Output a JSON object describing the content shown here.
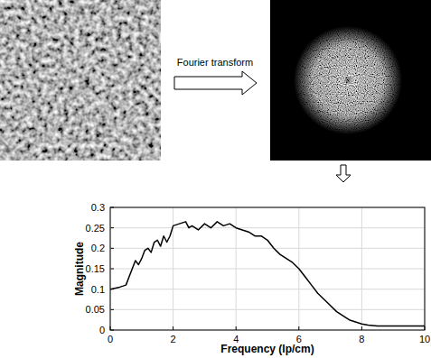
{
  "chart_data": {
    "type": "line",
    "annotation": "Fourier transform",
    "x_label": "Frequency (lp/cm)",
    "y_label": "Magnitude",
    "x": [
      0,
      0.3,
      0.5,
      0.6,
      0.8,
      0.9,
      1.0,
      1.1,
      1.2,
      1.3,
      1.4,
      1.5,
      1.6,
      1.7,
      1.8,
      1.9,
      2.0,
      2.2,
      2.4,
      2.5,
      2.6,
      2.8,
      3.0,
      3.2,
      3.4,
      3.6,
      3.8,
      4.0,
      4.2,
      4.4,
      4.6,
      4.8,
      5.0,
      5.2,
      5.4,
      5.6,
      5.8,
      6.0,
      6.2,
      6.4,
      6.6,
      6.8,
      7.0,
      7.2,
      7.4,
      7.6,
      7.8,
      8.0,
      8.2,
      8.5,
      9.0,
      10
    ],
    "values": [
      0.1,
      0.105,
      0.11,
      0.13,
      0.17,
      0.16,
      0.175,
      0.195,
      0.2,
      0.19,
      0.215,
      0.22,
      0.205,
      0.23,
      0.215,
      0.23,
      0.255,
      0.26,
      0.265,
      0.25,
      0.255,
      0.245,
      0.26,
      0.25,
      0.265,
      0.255,
      0.26,
      0.25,
      0.245,
      0.24,
      0.23,
      0.23,
      0.22,
      0.2,
      0.185,
      0.175,
      0.165,
      0.15,
      0.13,
      0.11,
      0.09,
      0.075,
      0.06,
      0.045,
      0.035,
      0.025,
      0.02,
      0.015,
      0.012,
      0.01,
      0.01,
      0.01
    ],
    "color": "#000000",
    "xlim": [
      0,
      10
    ],
    "ylim": [
      0,
      0.3
    ],
    "xticks": [
      0,
      2,
      4,
      6,
      8,
      10
    ],
    "yticks": [
      0,
      0.05,
      0.1,
      0.15,
      0.2,
      0.25,
      0.3
    ],
    "grid": true
  }
}
